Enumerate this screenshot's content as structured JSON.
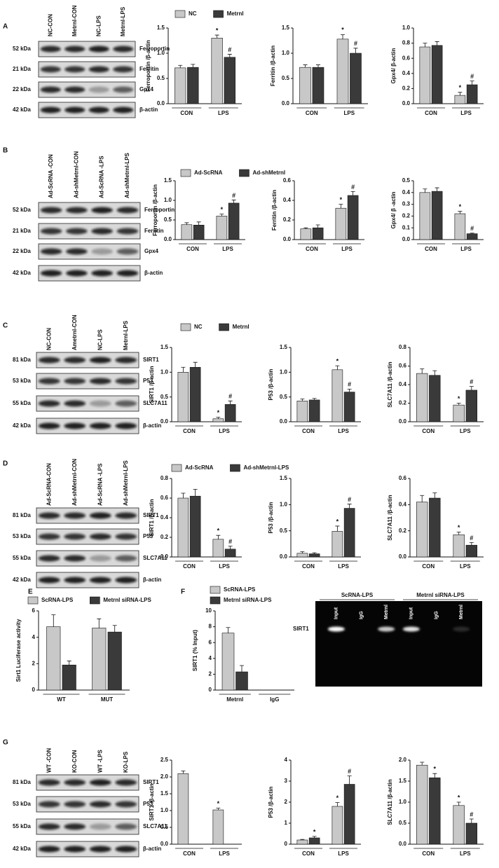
{
  "blots": [
    {
      "letter": "A",
      "lanes": [
        "NC-CON",
        "Metrnl-CON",
        "NC-LPS",
        "Metrnl-LPS"
      ],
      "rows": [
        {
          "kda": "52 kDa",
          "protein": "Ferroportin"
        },
        {
          "kda": "21 kDa",
          "protein": "Ferritin"
        },
        {
          "kda": "22 kDa",
          "protein": "Gpx4"
        },
        {
          "kda": "42 kDa",
          "protein": "β-actin"
        }
      ]
    },
    {
      "letter": "B",
      "lanes": [
        "Ad-ScRNA -CON",
        "Ad-shMetrnl-CON",
        "Ad-ScRNA -LPS",
        "Ad-shMetrnl-LPS"
      ],
      "rows": [
        {
          "kda": "52 kDa",
          "protein": "Ferroportin"
        },
        {
          "kda": "21 kDa",
          "protein": "Ferritin"
        },
        {
          "kda": "22 kDa",
          "protein": "Gpx4"
        },
        {
          "kda": "42 kDa",
          "protein": "β-actin"
        }
      ]
    },
    {
      "letter": "C",
      "lanes": [
        "NC-CON",
        "Ametrnl-CON",
        "NC-LPS",
        "Metrnl-LPS"
      ],
      "rows": [
        {
          "kda": "81 kDa",
          "protein": "SIRT1"
        },
        {
          "kda": "53 kDa",
          "protein": "P53"
        },
        {
          "kda": "55 kDa",
          "protein": "SLC7A11"
        },
        {
          "kda": "42 kDa",
          "protein": "β-actin"
        }
      ]
    },
    {
      "letter": "D",
      "lanes": [
        "Ad-ScRNA-CON",
        "Ad-shMetrnl-CON",
        "Ad-ScRNA -LPS",
        "Ad-shMetrnl-LPS"
      ],
      "rows": [
        {
          "kda": "81 kDa",
          "protein": "SIRT1"
        },
        {
          "kda": "53 kDa",
          "protein": "P53"
        },
        {
          "kda": "55 kDa",
          "protein": "SLC7A11"
        },
        {
          "kda": "42 kDa",
          "protein": "β-actin"
        }
      ]
    },
    {
      "letter": "G",
      "lanes": [
        "WT -CON",
        "KO-CON",
        "WT -LPS",
        "KO-LPS"
      ],
      "rows": [
        {
          "kda": "81 kDa",
          "protein": "SIRT1"
        },
        {
          "kda": "53 kDa",
          "protein": "P53"
        },
        {
          "kda": "55 kDa",
          "protein": "SLC7A11"
        },
        {
          "kda": "42 kDa",
          "protein": "β-actin"
        }
      ]
    }
  ],
  "other_letters": [
    "E",
    "F"
  ],
  "gel": {
    "groups": [
      "ScRNA-LPS",
      "Metrnl siRNA-LPS"
    ],
    "lanes": [
      "Input",
      "IgG",
      "Metrnl",
      "Input",
      "IgG",
      "Metrnl"
    ],
    "band": "SIRT1"
  },
  "chart_data": [
    {
      "type": "bar",
      "ylabel": "Ferroportin /β-actin",
      "categories": [
        "CON",
        "LPS"
      ],
      "ylim": [
        0,
        1.5
      ],
      "yticks": [
        {
          "value": 0,
          "label": "0.0"
        },
        0.5,
        {
          "value": 1,
          "label": "1.0"
        },
        1.5
      ],
      "series": [
        {
          "name": "NC",
          "color": "#c8c8c8",
          "values": [
            0.71,
            1.3
          ],
          "errors": [
            0.05,
            0.06
          ],
          "sig": [
            null,
            "*"
          ]
        },
        {
          "name": "Metrnl",
          "color": "#3a3a3a",
          "values": [
            0.72,
            0.92
          ],
          "errors": [
            0.06,
            0.06
          ],
          "sig": [
            null,
            "#"
          ]
        }
      ]
    },
    {
      "type": "bar",
      "ylabel": "Ferritin /β-actin",
      "categories": [
        "CON",
        "LPS"
      ],
      "ylim": [
        0,
        1.5
      ],
      "yticks": [
        {
          "value": 0,
          "label": "0.0"
        },
        0.5,
        {
          "value": 1,
          "label": "1.0"
        },
        1.5
      ],
      "series": [
        {
          "color": "#c8c8c8",
          "values": [
            0.72,
            1.28
          ],
          "errors": [
            0.05,
            0.09
          ],
          "sig": [
            null,
            "*"
          ]
        },
        {
          "color": "#3a3a3a",
          "values": [
            0.72,
            1.0
          ],
          "errors": [
            0.05,
            0.1
          ],
          "sig": [
            null,
            "#"
          ]
        }
      ]
    },
    {
      "type": "bar",
      "ylabel": "Gpx4/ β-actin",
      "categories": [
        "CON",
        "LPS"
      ],
      "ylim": [
        0,
        1
      ],
      "yticks": [
        {
          "value": 0,
          "label": "0.0"
        },
        0.2,
        0.4,
        0.6,
        0.8,
        {
          "value": 1,
          "label": "1.0"
        }
      ],
      "series": [
        {
          "color": "#c8c8c8",
          "values": [
            0.75,
            0.11
          ],
          "errors": [
            0.05,
            0.04
          ],
          "sig": [
            null,
            "*"
          ]
        },
        {
          "color": "#3a3a3a",
          "values": [
            0.77,
            0.25
          ],
          "errors": [
            0.05,
            0.05
          ],
          "sig": [
            null,
            "#"
          ]
        }
      ]
    },
    {
      "type": "bar",
      "ylabel": "Ferroportin /β-actin",
      "categories": [
        "CON",
        "LPS"
      ],
      "ylim": [
        0,
        1.5
      ],
      "yticks": [
        {
          "value": 0,
          "label": "0.0"
        },
        0.5,
        {
          "value": 1,
          "label": "1.0"
        },
        1.5
      ],
      "series": [
        {
          "name": "Ad-ScRNA",
          "color": "#c8c8c8",
          "values": [
            0.38,
            0.6
          ],
          "errors": [
            0.05,
            0.05
          ],
          "sig": [
            null,
            "*"
          ]
        },
        {
          "name": "Ad-shMetrnl",
          "color": "#3a3a3a",
          "values": [
            0.37,
            0.93
          ],
          "errors": [
            0.08,
            0.08
          ],
          "sig": [
            null,
            "#"
          ]
        }
      ]
    },
    {
      "type": "bar",
      "ylabel": "Ferritin /β-actin",
      "categories": [
        "CON",
        "LPS"
      ],
      "ylim": [
        0,
        0.6
      ],
      "yticks": [
        {
          "value": 0,
          "label": "0.0"
        },
        0.2,
        0.4,
        0.6
      ],
      "series": [
        {
          "color": "#c8c8c8",
          "values": [
            0.11,
            0.32
          ],
          "errors": [
            0.01,
            0.04
          ],
          "sig": [
            null,
            "*"
          ]
        },
        {
          "color": "#3a3a3a",
          "values": [
            0.12,
            0.45
          ],
          "errors": [
            0.03,
            0.04
          ],
          "sig": [
            null,
            "#"
          ]
        }
      ]
    },
    {
      "type": "bar",
      "ylabel": "Gpx4/ β -actin",
      "categories": [
        "CON",
        "LPS"
      ],
      "ylim": [
        0,
        0.5
      ],
      "yticks": [
        {
          "value": 0,
          "label": "0.0"
        },
        0.1,
        0.2,
        0.3,
        0.4,
        0.5
      ],
      "series": [
        {
          "color": "#c8c8c8",
          "values": [
            0.4,
            0.22
          ],
          "errors": [
            0.03,
            0.02
          ],
          "sig": [
            null,
            "*"
          ]
        },
        {
          "color": "#3a3a3a",
          "values": [
            0.41,
            0.05
          ],
          "errors": [
            0.03,
            0.005
          ],
          "sig": [
            null,
            "#"
          ]
        }
      ]
    },
    {
      "type": "bar",
      "ylabel": "SIRT1 /β-actin",
      "categories": [
        "CON",
        "LPS"
      ],
      "ylim": [
        0,
        1.5
      ],
      "yticks": [
        {
          "value": 0,
          "label": "0.0"
        },
        0.5,
        {
          "value": 1,
          "label": "1.0"
        },
        1.5
      ],
      "series": [
        {
          "name": "NC",
          "color": "#c8c8c8",
          "values": [
            1.0,
            0.06
          ],
          "errors": [
            0.1,
            0.03
          ],
          "sig": [
            null,
            "*"
          ]
        },
        {
          "name": "Metrnl",
          "color": "#3a3a3a",
          "values": [
            1.1,
            0.35
          ],
          "errors": [
            0.1,
            0.07
          ],
          "sig": [
            null,
            "#"
          ]
        }
      ]
    },
    {
      "type": "bar",
      "ylabel": "P53 /β-actin",
      "categories": [
        "CON",
        "LPS"
      ],
      "ylim": [
        0,
        1.5
      ],
      "yticks": [
        {
          "value": 0,
          "label": "0.0"
        },
        0.5,
        {
          "value": 1,
          "label": "1.0"
        },
        1.5
      ],
      "series": [
        {
          "color": "#c8c8c8",
          "values": [
            0.42,
            1.05
          ],
          "errors": [
            0.04,
            0.08
          ],
          "sig": [
            null,
            "*"
          ]
        },
        {
          "color": "#3a3a3a",
          "values": [
            0.44,
            0.6
          ],
          "errors": [
            0.03,
            0.06
          ],
          "sig": [
            null,
            "#"
          ]
        }
      ]
    },
    {
      "type": "bar",
      "ylabel": "SLC7A11 /β-actin",
      "categories": [
        "CON",
        "LPS"
      ],
      "ylim": [
        0,
        0.8
      ],
      "yticks": [
        {
          "value": 0,
          "label": "0.0"
        },
        0.2,
        0.4,
        0.6,
        0.8
      ],
      "series": [
        {
          "color": "#c8c8c8",
          "values": [
            0.52,
            0.18
          ],
          "errors": [
            0.05,
            0.02
          ],
          "sig": [
            null,
            "*"
          ]
        },
        {
          "color": "#3a3a3a",
          "values": [
            0.5,
            0.34
          ],
          "errors": [
            0.05,
            0.04
          ],
          "sig": [
            null,
            "#"
          ]
        }
      ]
    },
    {
      "type": "bar",
      "ylabel": "SIRT1 /β-actin",
      "categories": [
        "CON",
        "LPS"
      ],
      "ylim": [
        0,
        0.8
      ],
      "yticks": [
        {
          "value": 0,
          "label": "0.0"
        },
        0.2,
        0.4,
        0.6,
        0.8
      ],
      "series": [
        {
          "name": "Ad-ScRNA",
          "color": "#c8c8c8",
          "values": [
            0.6,
            0.18
          ],
          "errors": [
            0.05,
            0.04
          ],
          "sig": [
            null,
            "*"
          ]
        },
        {
          "name": "Ad-shMetrnl-LPS",
          "color": "#3a3a3a",
          "values": [
            0.62,
            0.08
          ],
          "errors": [
            0.07,
            0.03
          ],
          "sig": [
            null,
            "#"
          ]
        }
      ]
    },
    {
      "type": "bar",
      "ylabel": "P53 /β-actin",
      "categories": [
        "CON",
        "LPS"
      ],
      "ylim": [
        0,
        1.5
      ],
      "yticks": [
        {
          "value": 0,
          "label": "0.0"
        },
        0.5,
        {
          "value": 1,
          "label": "1.0"
        },
        1.5
      ],
      "series": [
        {
          "color": "#c8c8c8",
          "values": [
            0.07,
            0.49
          ],
          "errors": [
            0.03,
            0.1
          ],
          "sig": [
            null,
            "*"
          ]
        },
        {
          "color": "#3a3a3a",
          "values": [
            0.06,
            0.93
          ],
          "errors": [
            0.02,
            0.08
          ],
          "sig": [
            null,
            "#"
          ]
        }
      ]
    },
    {
      "type": "bar",
      "ylabel": "SLC7A11 /β-actin",
      "categories": [
        "CON",
        "LPS"
      ],
      "ylim": [
        0,
        0.6
      ],
      "yticks": [
        {
          "value": 0,
          "label": "0.0"
        },
        0.2,
        0.4,
        0.6
      ],
      "series": [
        {
          "color": "#c8c8c8",
          "values": [
            0.42,
            0.17
          ],
          "errors": [
            0.05,
            0.02
          ],
          "sig": [
            null,
            "*"
          ]
        },
        {
          "color": "#3a3a3a",
          "values": [
            0.45,
            0.09
          ],
          "errors": [
            0.04,
            0.02
          ],
          "sig": [
            null,
            "#"
          ]
        }
      ]
    },
    {
      "type": "bar",
      "ylabel": "Sirt1 Luciferase activity",
      "categories": [
        "WT",
        "MUT"
      ],
      "ylim": [
        0,
        6
      ],
      "yticks": [
        0,
        2,
        4,
        6
      ],
      "series": [
        {
          "name": "ScRNA-LPS",
          "color": "#c8c8c8",
          "values": [
            4.8,
            4.7
          ],
          "errors": [
            0.9,
            0.7
          ]
        },
        {
          "name": "Metrnl siRNA-LPS",
          "color": "#3a3a3a",
          "values": [
            1.9,
            4.4
          ],
          "errors": [
            0.3,
            0.5
          ]
        }
      ]
    },
    {
      "type": "bar",
      "ylabel": "SIRT1 (% Input)",
      "categories": [
        "Metrnl",
        "IgG"
      ],
      "ylim": [
        0,
        10
      ],
      "yticks": [
        0,
        2,
        4,
        6,
        8,
        10
      ],
      "series": [
        {
          "name": "ScRNA-LPS",
          "color": "#c8c8c8",
          "values": [
            7.2,
            0
          ],
          "errors": [
            0.7,
            0
          ]
        },
        {
          "name": "Metrnl siRNA-LPS",
          "color": "#3a3a3a",
          "values": [
            2.3,
            0
          ],
          "errors": [
            0.8,
            0
          ]
        }
      ]
    },
    {
      "type": "bar",
      "ylabel": "SIRT1 /β-actin",
      "categories": [
        "CON",
        "LPS"
      ],
      "ylim": [
        0,
        2.5
      ],
      "yticks": [
        {
          "value": 0,
          "label": "0.0"
        },
        0.5,
        {
          "value": 1,
          "label": "1.0"
        },
        1.5,
        {
          "value": 2,
          "label": "2.0"
        },
        2.5
      ],
      "series": [
        {
          "color": "#c8c8c8",
          "values": [
            2.1,
            1.02
          ],
          "errors": [
            0.08,
            0.05
          ],
          "sig": [
            null,
            "*"
          ]
        },
        {
          "color": "#3a3a3a",
          "values": [
            0,
            0
          ],
          "errors": [
            0,
            0
          ]
        }
      ]
    },
    {
      "type": "bar",
      "ylabel": "P53 /β-actin",
      "categories": [
        "CON",
        "LPS"
      ],
      "ylim": [
        0,
        4
      ],
      "yticks": [
        0,
        1,
        2,
        3,
        4
      ],
      "series": [
        {
          "color": "#c8c8c8",
          "values": [
            0.2,
            1.8
          ],
          "errors": [
            0.03,
            0.18
          ],
          "sig": [
            null,
            "*"
          ]
        },
        {
          "color": "#3a3a3a",
          "values": [
            0.3,
            2.85
          ],
          "errors": [
            0.07,
            0.4
          ],
          "sig": [
            "*",
            "#"
          ]
        }
      ]
    },
    {
      "type": "bar",
      "ylabel": "SLC7A11 /β-actin",
      "categories": [
        "CON",
        "LPS"
      ],
      "ylim": [
        0,
        2
      ],
      "yticks": [
        {
          "value": 0,
          "label": "0.0"
        },
        0.5,
        {
          "value": 1,
          "label": "1.0"
        },
        1.5,
        {
          "value": 2,
          "label": "2.0"
        }
      ],
      "series": [
        {
          "color": "#c8c8c8",
          "values": [
            1.88,
            0.92
          ],
          "errors": [
            0.07,
            0.08
          ],
          "sig": [
            null,
            "*"
          ]
        },
        {
          "color": "#3a3a3a",
          "values": [
            1.58,
            0.5
          ],
          "errors": [
            0.1,
            0.1
          ],
          "sig": [
            "*",
            "#"
          ]
        }
      ]
    }
  ]
}
